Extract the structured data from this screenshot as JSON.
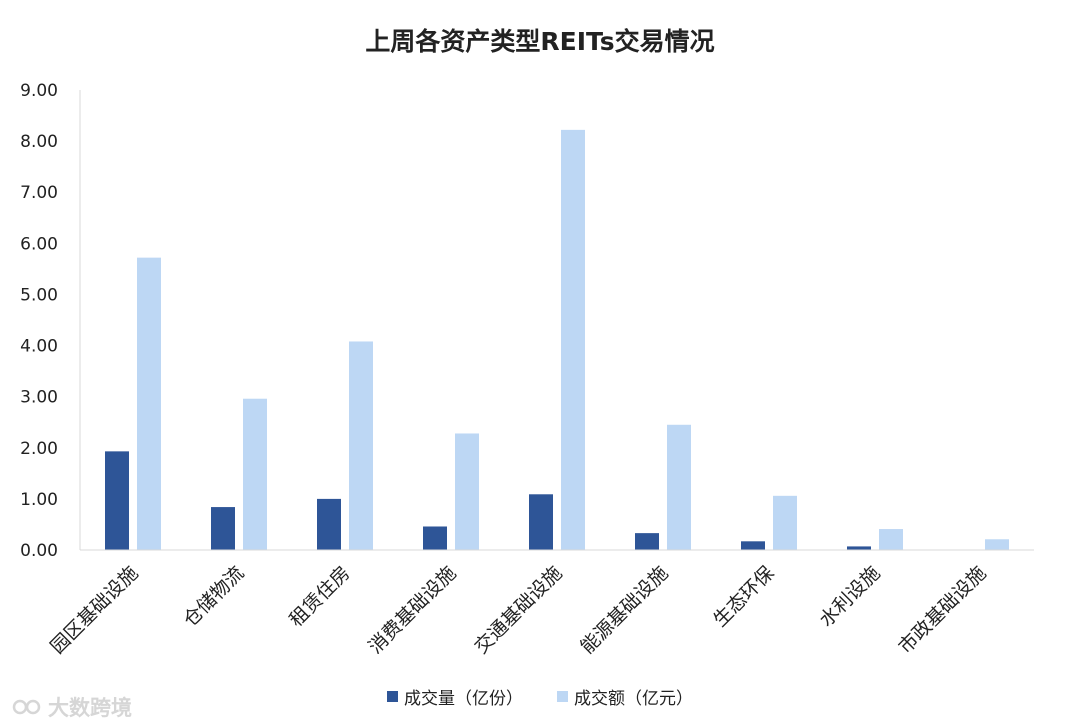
{
  "chart_data": {
    "type": "bar",
    "title": "上周各资产类型REITs交易情况",
    "categories": [
      "园区基础设施",
      "仓储物流",
      "租赁住房",
      "消费基础设施",
      "交通基础设施",
      "能源基础设施",
      "生态环保",
      "水利设施",
      "市政基础设施"
    ],
    "series": [
      {
        "name": "成交量（亿份）",
        "color": "#2e5597",
        "values": [
          1.93,
          0.84,
          1.0,
          0.46,
          1.09,
          0.33,
          0.17,
          0.07,
          0.0
        ]
      },
      {
        "name": "成交额（亿元）",
        "color": "#bdd7f4",
        "values": [
          5.72,
          2.96,
          4.08,
          2.28,
          8.22,
          2.45,
          1.06,
          0.41,
          0.21
        ]
      }
    ],
    "yticks": [
      "0.00",
      "1.00",
      "2.00",
      "3.00",
      "4.00",
      "5.00",
      "6.00",
      "7.00",
      "8.00",
      "9.00"
    ],
    "ylim": [
      0,
      9
    ],
    "grid": false,
    "legend_position": "bottom"
  },
  "watermark": {
    "text": "大数跨境"
  }
}
